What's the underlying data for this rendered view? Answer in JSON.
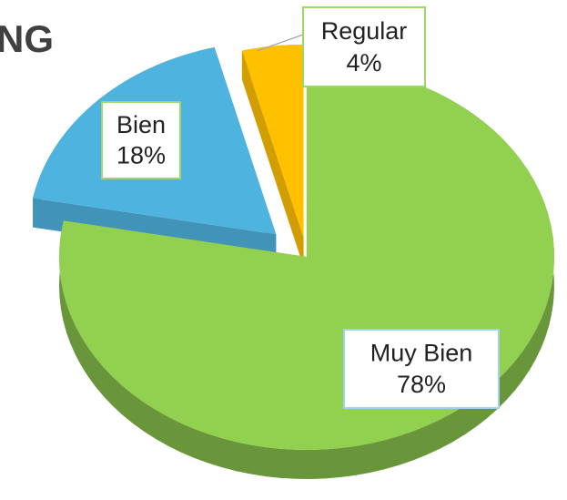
{
  "chart_data": {
    "type": "pie",
    "title": "NG",
    "categories": [
      "Muy Bien",
      "Bien",
      "Regular"
    ],
    "values": [
      78,
      18,
      4
    ],
    "value_labels": [
      "78%",
      "18%",
      "4%"
    ],
    "colors": [
      "#92d050",
      "#4fb3df",
      "#ffc000"
    ]
  }
}
